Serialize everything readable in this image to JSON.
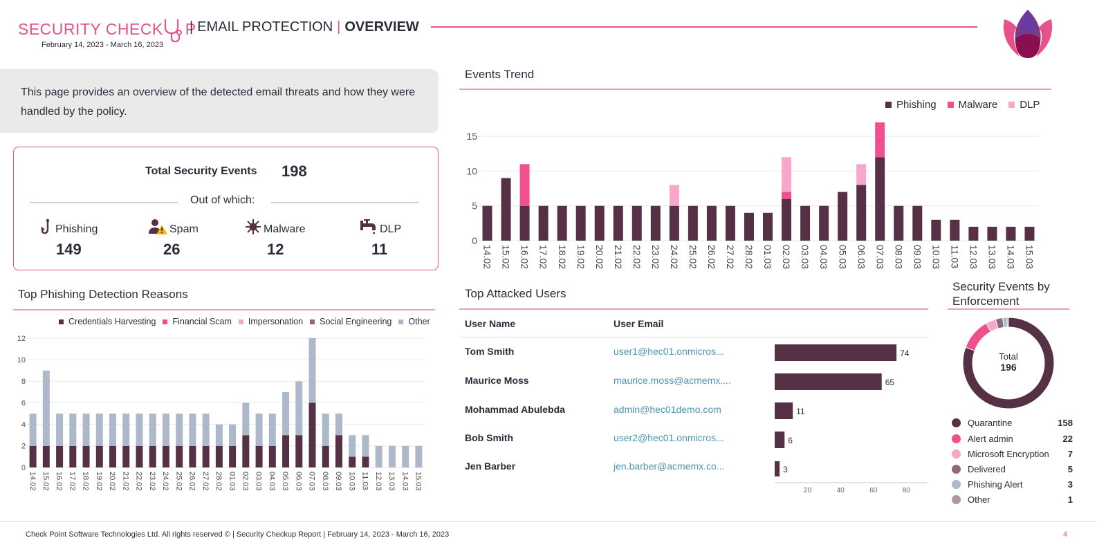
{
  "header": {
    "brand_title": "SECURITY CHECK",
    "brand_title_tail": "P",
    "section": "EMAIL PROTECTION",
    "separator": "|",
    "page": "OVERVIEW",
    "date_range": "February 14, 2023 - March 16, 2023"
  },
  "description": "This page provides an overview of the detected email threats and how they were handled by the policy.",
  "totals": {
    "label": "Total Security Events",
    "value": "198",
    "out_of": "Out of which:",
    "stats": [
      {
        "label": "Phishing",
        "value": "149",
        "icon": "phishing-hook-icon"
      },
      {
        "label": "Spam",
        "value": "26",
        "icon": "spam-user-warning-icon"
      },
      {
        "label": "Malware",
        "value": "12",
        "icon": "malware-virus-icon"
      },
      {
        "label": "DLP",
        "value": "11",
        "icon": "dlp-faucet-icon"
      }
    ]
  },
  "events_trend": {
    "title": "Events Trend",
    "legend": [
      "Phishing",
      "Malware",
      "DLP"
    ]
  },
  "phishing_reasons": {
    "title": "Top Phishing Detection Reasons",
    "legend": [
      "Credentials Harvesting",
      "Financial Scam",
      "Impersonation",
      "Social Engineering",
      "Other"
    ]
  },
  "top_users": {
    "title": "Top Attacked Users",
    "col_name": "User Name",
    "col_email": "User Email",
    "rows": [
      {
        "name": "Tom Smith",
        "email": "user1@hec01.onmicros...",
        "count": 74
      },
      {
        "name": "Maurice Moss",
        "email": "maurice.moss@acmemx....",
        "count": 65
      },
      {
        "name": "Mohammad Abulebda",
        "email": "admin@hec01demo.com",
        "count": 11
      },
      {
        "name": "Bob Smith",
        "email": "user2@hec01.onmicros...",
        "count": 6
      },
      {
        "name": "Jen Barber",
        "email": "jen.barber@acmemx.co...",
        "count": 3
      }
    ],
    "axis_ticks": [
      "20",
      "40",
      "60",
      "80"
    ]
  },
  "enforcement": {
    "title_line1": "Security Events by",
    "title_line2": "Enforcement",
    "total_label": "Total",
    "total_value": "196",
    "items": [
      {
        "name": "Quarantine",
        "count": "158",
        "color": "#563146"
      },
      {
        "name": "Alert admin",
        "count": "22",
        "color": "#f0518c"
      },
      {
        "name": "Microsoft Encryption",
        "count": "7",
        "color": "#f7a8c8"
      },
      {
        "name": "Delivered",
        "count": "5",
        "color": "#8c6a7c"
      },
      {
        "name": "Phishing Alert",
        "count": "3",
        "color": "#aeb8cb"
      },
      {
        "name": "Other",
        "count": "1",
        "color": "#a89aa0"
      }
    ]
  },
  "footer": {
    "text": "Check Point Software Technologies Ltd. All rights reserved © | Security Checkup Report | February 14, 2023 - March 16, 2023",
    "page_number": "4"
  },
  "colors": {
    "accent": "#e8518a",
    "dark": "#563146",
    "pink": "#f0518c",
    "light_pink": "#f7a8c8",
    "grey_blue": "#aeb8cb",
    "mauve": "#8c6a7c"
  },
  "chart_data": [
    {
      "type": "bar",
      "title": "Events Trend",
      "stacked": true,
      "categories": [
        "14.02",
        "15.02",
        "16.02",
        "17.02",
        "18.02",
        "19.02",
        "20.02",
        "21.02",
        "22.02",
        "23.02",
        "24.02",
        "25.02",
        "26.02",
        "27.02",
        "28.02",
        "01.03",
        "02.03",
        "03.03",
        "04.03",
        "05.03",
        "06.03",
        "07.03",
        "08.03",
        "09.03",
        "10.03",
        "11.03",
        "12.03",
        "13.03",
        "14.03",
        "15.03"
      ],
      "series": [
        {
          "name": "Phishing",
          "color": "#563146",
          "values": [
            5,
            9,
            5,
            5,
            5,
            5,
            5,
            5,
            5,
            5,
            5,
            5,
            5,
            5,
            4,
            4,
            6,
            5,
            5,
            7,
            8,
            12,
            5,
            5,
            3,
            3,
            2,
            2,
            2,
            2
          ]
        },
        {
          "name": "Malware",
          "color": "#f0518c",
          "values": [
            0,
            0,
            6,
            0,
            0,
            0,
            0,
            0,
            0,
            0,
            0,
            0,
            0,
            0,
            0,
            0,
            1,
            0,
            0,
            0,
            0,
            5,
            0,
            0,
            0,
            0,
            0,
            0,
            0,
            0
          ]
        },
        {
          "name": "DLP",
          "color": "#f7a8c8",
          "values": [
            0,
            0,
            0,
            0,
            0,
            0,
            0,
            0,
            0,
            0,
            3,
            0,
            0,
            0,
            0,
            0,
            5,
            0,
            0,
            0,
            3,
            0,
            0,
            0,
            0,
            0,
            0,
            0,
            0,
            0
          ]
        }
      ],
      "yticks": [
        0,
        5,
        10,
        15
      ],
      "ylim": [
        0,
        17
      ],
      "grid": true,
      "legend_position": "top-right"
    },
    {
      "type": "bar",
      "title": "Top Phishing Detection Reasons",
      "stacked": true,
      "categories": [
        "14.02",
        "15.02",
        "16.02",
        "17.02",
        "18.02",
        "19.02",
        "20.02",
        "21.02",
        "22.02",
        "23.02",
        "24.02",
        "25.02",
        "26.02",
        "27.02",
        "28.02",
        "01.03",
        "02.03",
        "03.03",
        "04.03",
        "05.03",
        "06.03",
        "07.03",
        "08.03",
        "09.03",
        "10.03",
        "11.03",
        "12.03",
        "13.03",
        "14.03",
        "15.03"
      ],
      "series": [
        {
          "name": "Credentials Harvesting",
          "color": "#563146",
          "values": [
            2,
            2,
            2,
            2,
            2,
            2,
            2,
            2,
            2,
            2,
            2,
            2,
            2,
            2,
            2,
            2,
            3,
            2,
            2,
            3,
            3,
            6,
            2,
            3,
            1,
            1,
            0,
            0,
            0,
            0
          ]
        },
        {
          "name": "Financial Scam",
          "color": "#f0518c",
          "values": [
            0,
            0,
            0,
            0,
            0,
            0,
            0,
            0,
            0,
            0,
            0,
            0,
            0,
            0,
            0,
            0,
            0,
            0,
            0,
            0,
            0,
            0,
            0,
            0,
            0,
            0,
            0,
            0,
            0,
            0
          ]
        },
        {
          "name": "Impersonation",
          "color": "#f7a8c8",
          "values": [
            0,
            0,
            0,
            0,
            0,
            0,
            0,
            0,
            0,
            0,
            0,
            0,
            0,
            0,
            0,
            0,
            0,
            0,
            0,
            0,
            0,
            0,
            0,
            0,
            0,
            0,
            0,
            0,
            0,
            0
          ]
        },
        {
          "name": "Social Engineering",
          "color": "#8c6a7c",
          "values": [
            0,
            0,
            0,
            0,
            0,
            0,
            0,
            0,
            0,
            0,
            0,
            0,
            0,
            0,
            0,
            0,
            0,
            0,
            0,
            0,
            0,
            0,
            0,
            0,
            0,
            0,
            0,
            0,
            0,
            0
          ]
        },
        {
          "name": "Other",
          "color": "#aeb8cb",
          "values": [
            3,
            7,
            3,
            3,
            3,
            3,
            3,
            3,
            3,
            3,
            3,
            3,
            3,
            3,
            2,
            2,
            3,
            3,
            3,
            4,
            5,
            6,
            3,
            2,
            2,
            2,
            2,
            2,
            2,
            2
          ]
        }
      ],
      "yticks": [
        0,
        2,
        4,
        6,
        8,
        10,
        12
      ],
      "ylim": [
        0,
        12
      ],
      "grid": true,
      "legend_position": "top"
    },
    {
      "type": "bar",
      "orientation": "horizontal",
      "title": "Top Attacked Users",
      "categories": [
        "Tom Smith",
        "Maurice Moss",
        "Mohammad Abulebda",
        "Bob Smith",
        "Jen Barber"
      ],
      "values": [
        74,
        65,
        11,
        6,
        3
      ],
      "xticks": [
        20,
        40,
        60,
        80
      ],
      "xlim": [
        0,
        92
      ]
    },
    {
      "type": "pie",
      "title": "Security Events by Enforcement",
      "donut": true,
      "labels": [
        "Quarantine",
        "Alert admin",
        "Microsoft Encryption",
        "Delivered",
        "Phishing Alert",
        "Other"
      ],
      "values": [
        158,
        22,
        7,
        5,
        3,
        1
      ],
      "total": 196
    }
  ]
}
